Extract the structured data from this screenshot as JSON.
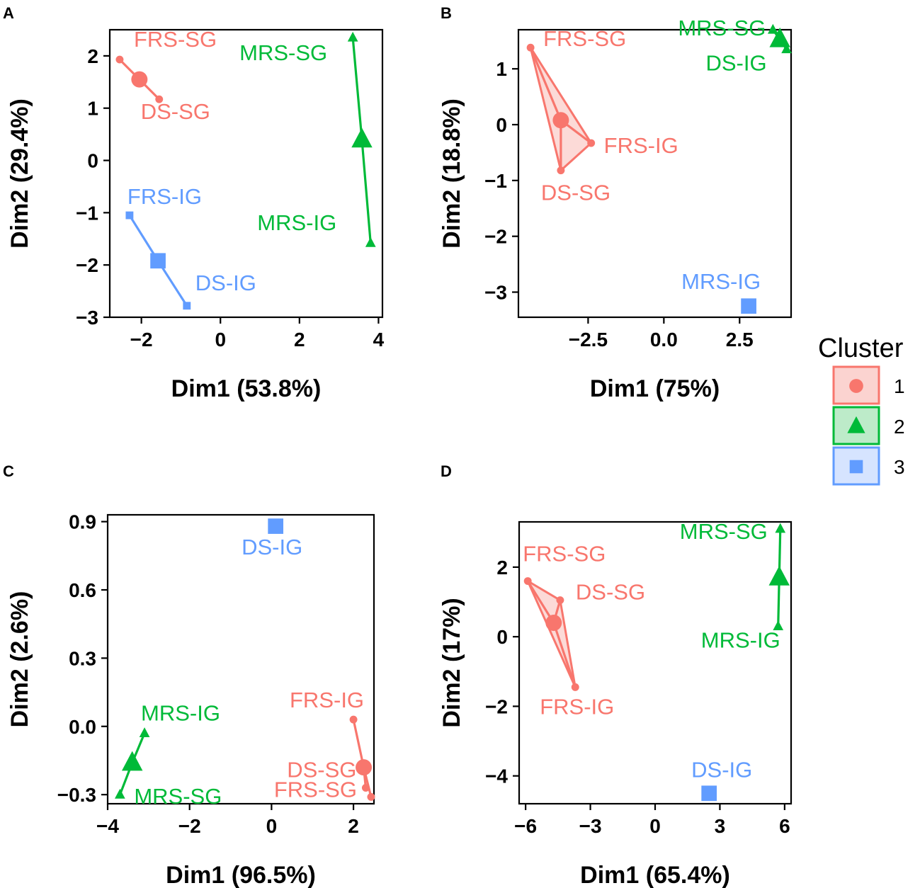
{
  "cluster_colors": {
    "1": "#F8766D",
    "2": "#00BA38",
    "3": "#619CFF"
  },
  "legend": {
    "title": "Cluster",
    "items": [
      {
        "label": "1",
        "cluster": "1",
        "shape": "circle"
      },
      {
        "label": "2",
        "cluster": "2",
        "shape": "triangle"
      },
      {
        "label": "3",
        "cluster": "3",
        "shape": "square"
      }
    ]
  },
  "chart_data": [
    {
      "panel": "A",
      "type": "scatter",
      "xlabel": "Dim1 (53.8%)",
      "ylabel": "Dim2 (29.4%)",
      "xlim": [
        -2.8,
        4.1
      ],
      "ylim": [
        -3.0,
        2.5
      ],
      "xticks": [
        -2,
        0,
        2,
        4
      ],
      "xtick_labels": [
        "−2",
        "0",
        "2",
        "4"
      ],
      "yticks": [
        -3,
        -2,
        -1,
        0,
        1,
        2
      ],
      "ytick_labels": [
        "−3",
        "−2",
        "−1",
        "0",
        "1",
        "2"
      ],
      "clusters": [
        {
          "cluster": "1",
          "shape": "circle",
          "hull": false,
          "points": [
            {
              "label": "FRS-SG",
              "x": -2.55,
              "y": 1.93
            },
            {
              "label": "DS-SG",
              "x": -1.55,
              "y": 1.17
            }
          ],
          "centroid": {
            "x": -2.05,
            "y": 1.55
          }
        },
        {
          "cluster": "2",
          "shape": "triangle",
          "hull": false,
          "points": [
            {
              "label": "MRS-SG",
              "x": 3.35,
              "y": 2.35
            },
            {
              "label": "MRS-IG",
              "x": 3.8,
              "y": -1.58
            }
          ],
          "centroid": {
            "x": 3.58,
            "y": 0.4
          }
        },
        {
          "cluster": "3",
          "shape": "square",
          "hull": false,
          "points": [
            {
              "label": "FRS-IG",
              "x": -2.3,
              "y": -1.05
            },
            {
              "label": "DS-IG",
              "x": -0.85,
              "y": -2.78
            }
          ],
          "centroid": {
            "x": -1.58,
            "y": -1.92
          }
        }
      ]
    },
    {
      "panel": "B",
      "type": "scatter",
      "xlabel": "Dim1 (75%)",
      "ylabel": "Dim2 (18.8%)",
      "xlim": [
        -4.8,
        4.2
      ],
      "ylim": [
        -3.45,
        1.7
      ],
      "xticks": [
        -2.5,
        0,
        2.5
      ],
      "xtick_labels": [
        "−2.5",
        "0.0",
        "2.5"
      ],
      "yticks": [
        -3,
        -2,
        -1,
        0,
        1
      ],
      "ytick_labels": [
        "−3",
        "−2",
        "−1",
        "0",
        "1"
      ],
      "clusters": [
        {
          "cluster": "1",
          "shape": "circle",
          "hull": true,
          "points": [
            {
              "label": "FRS-SG",
              "x": -4.4,
              "y": 1.38
            },
            {
              "label": "FRS-IG",
              "x": -2.4,
              "y": -0.33
            },
            {
              "label": "DS-SG",
              "x": -3.4,
              "y": -0.82
            }
          ],
          "centroid": {
            "x": -3.4,
            "y": 0.08
          }
        },
        {
          "cluster": "2",
          "shape": "triangle",
          "hull": false,
          "points": [
            {
              "label": "MRS-SG",
              "x": 3.6,
              "y": 1.7
            },
            {
              "label": "DS-IG",
              "x": 4.05,
              "y": 1.35
            }
          ],
          "centroid": {
            "x": 3.83,
            "y": 1.53
          }
        },
        {
          "cluster": "3",
          "shape": "square",
          "hull": false,
          "points": [
            {
              "label": "MRS-IG",
              "x": 2.8,
              "y": -3.25
            }
          ],
          "centroid": {
            "x": 2.8,
            "y": -3.25
          }
        }
      ]
    },
    {
      "panel": "C",
      "type": "scatter",
      "xlabel": "Dim1 (96.5%)",
      "ylabel": "Dim2 (2.6%)",
      "xlim": [
        -4.0,
        2.5
      ],
      "ylim": [
        -0.34,
        0.93
      ],
      "xticks": [
        -4,
        -2,
        0,
        2
      ],
      "xtick_labels": [
        "−4",
        "−2",
        "0",
        "2"
      ],
      "yticks": [
        -0.3,
        0,
        0.3,
        0.6,
        0.9
      ],
      "ytick_labels": [
        "−0.3",
        "0.0",
        "0.3",
        "0.6",
        "0.9"
      ],
      "clusters": [
        {
          "cluster": "1",
          "shape": "circle",
          "hull": false,
          "points": [
            {
              "label": "FRS-IG",
              "x": 2.0,
              "y": 0.03
            },
            {
              "label": "DS-SG",
              "x": 2.3,
              "y": -0.27
            },
            {
              "label": "FRS-SG",
              "x": 2.43,
              "y": -0.31
            }
          ],
          "centroid": {
            "x": 2.25,
            "y": -0.18
          }
        },
        {
          "cluster": "2",
          "shape": "triangle",
          "hull": false,
          "points": [
            {
              "label": "MRS-IG",
              "x": -3.1,
              "y": -0.03
            },
            {
              "label": "MRS-SG",
              "x": -3.7,
              "y": -0.3
            }
          ],
          "centroid": {
            "x": -3.4,
            "y": -0.16
          }
        },
        {
          "cluster": "3",
          "shape": "square",
          "hull": false,
          "points": [
            {
              "label": "DS-IG",
              "x": 0.1,
              "y": 0.88
            }
          ],
          "centroid": {
            "x": 0.1,
            "y": 0.88
          }
        }
      ]
    },
    {
      "panel": "D",
      "type": "scatter",
      "xlabel": "Dim1 (65.4%)",
      "ylabel": "Dim2 (17%)",
      "xlim": [
        -6.3,
        6.3
      ],
      "ylim": [
        -4.8,
        3.3
      ],
      "xticks": [
        -6,
        -3,
        0,
        3,
        6
      ],
      "xtick_labels": [
        "−6",
        "−3",
        "0",
        "3",
        "6"
      ],
      "yticks": [
        -4,
        -2,
        0,
        2
      ],
      "ytick_labels": [
        "−4",
        "−2",
        "0",
        "2"
      ],
      "clusters": [
        {
          "cluster": "1",
          "shape": "circle",
          "hull": true,
          "points": [
            {
              "label": "FRS-SG",
              "x": -5.9,
              "y": 1.6
            },
            {
              "label": "DS-SG",
              "x": -4.4,
              "y": 1.05
            },
            {
              "label": "FRS-IG",
              "x": -3.7,
              "y": -1.45
            }
          ],
          "centroid": {
            "x": -4.7,
            "y": 0.4
          }
        },
        {
          "cluster": "2",
          "shape": "triangle",
          "hull": false,
          "points": [
            {
              "label": "MRS-SG",
              "x": 5.8,
              "y": 3.1
            },
            {
              "label": "MRS-IG",
              "x": 5.7,
              "y": 0.3
            }
          ],
          "centroid": {
            "x": 5.75,
            "y": 1.7
          }
        },
        {
          "cluster": "3",
          "shape": "square",
          "hull": false,
          "points": [
            {
              "label": "DS-IG",
              "x": 2.5,
              "y": -4.5
            }
          ],
          "centroid": {
            "x": 2.5,
            "y": -4.5
          }
        }
      ]
    }
  ]
}
